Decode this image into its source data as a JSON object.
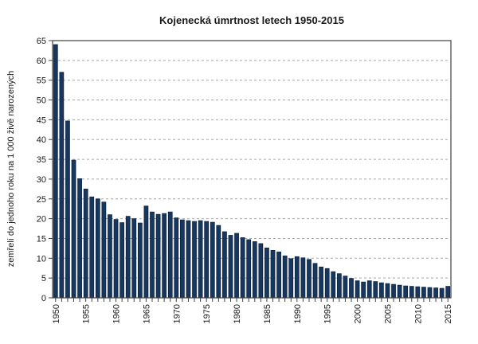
{
  "chart_data": {
    "type": "bar",
    "title": "Kojenecká úmrtnost letech 1950-2015",
    "xlabel": "",
    "ylabel": "zemřelí do jednoho roku na 1 000 živě narozených",
    "ylim": [
      0,
      65
    ],
    "ytick_step": 5,
    "grid": "horizontal-dashed",
    "legend": "none",
    "x_labeled_ticks": [
      1950,
      1955,
      1960,
      1965,
      1970,
      1975,
      1980,
      1985,
      1990,
      1995,
      2000,
      2005,
      2010,
      2015
    ],
    "categories": [
      1950,
      1951,
      1952,
      1953,
      1954,
      1955,
      1956,
      1957,
      1958,
      1959,
      1960,
      1961,
      1962,
      1963,
      1964,
      1965,
      1966,
      1967,
      1968,
      1969,
      1970,
      1971,
      1972,
      1973,
      1974,
      1975,
      1976,
      1977,
      1978,
      1979,
      1980,
      1981,
      1982,
      1983,
      1984,
      1985,
      1986,
      1987,
      1988,
      1989,
      1990,
      1991,
      1992,
      1993,
      1994,
      1995,
      1996,
      1997,
      1998,
      1999,
      2000,
      2001,
      2002,
      2003,
      2004,
      2005,
      2006,
      2007,
      2008,
      2009,
      2010,
      2011,
      2012,
      2013,
      2014,
      2015
    ],
    "values": [
      64.0,
      57.0,
      44.7,
      34.8,
      30.1,
      27.5,
      25.5,
      25.0,
      24.2,
      21.0,
      19.8,
      19.0,
      20.6,
      20.0,
      18.9,
      23.2,
      21.7,
      21.1,
      21.3,
      21.7,
      20.2,
      19.7,
      19.5,
      19.3,
      19.5,
      19.3,
      19.1,
      18.3,
      16.7,
      15.8,
      16.3,
      15.2,
      14.7,
      14.2,
      13.7,
      12.6,
      12.0,
      11.6,
      10.6,
      9.9,
      10.4,
      10.1,
      9.7,
      8.7,
      7.8,
      7.4,
      6.6,
      6.1,
      5.5,
      4.9,
      4.3,
      4.0,
      4.3,
      4.1,
      3.8,
      3.6,
      3.4,
      3.2,
      3.0,
      2.9,
      2.8,
      2.7,
      2.6,
      2.5,
      2.4,
      2.9
    ],
    "colors": {
      "bar": "#17375e",
      "bar_border": "#0c2240",
      "axis": "#404040",
      "gridline": "#a8a8a8",
      "text": "#1a1a1a",
      "background": "#ffffff"
    }
  }
}
